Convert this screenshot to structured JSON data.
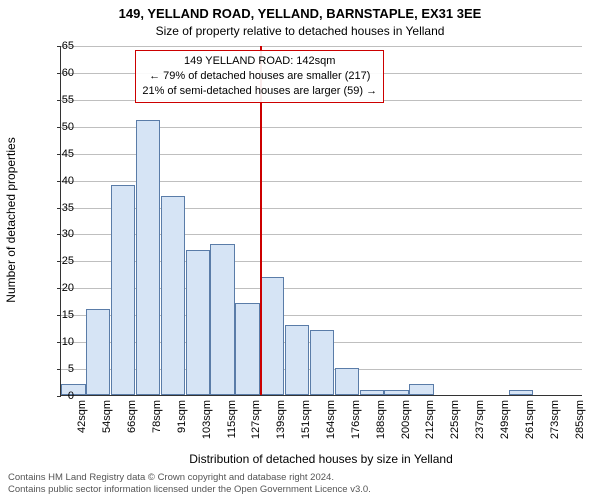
{
  "title_line1": "149, YELLAND ROAD, YELLAND, BARNSTAPLE, EX31 3EE",
  "title_line2": "Size of property relative to detached houses in Yelland",
  "y_axis_label": "Number of detached properties",
  "x_axis_label": "Distribution of detached houses by size in Yelland",
  "footer_line1": "Contains HM Land Registry data © Crown copyright and database right 2024.",
  "footer_line2": "Contains public sector information licensed under the Open Government Licence v3.0.",
  "chart": {
    "type": "histogram",
    "bar_color": "#d6e4f5",
    "bar_border_color": "#5a7ca8",
    "grid_color": "#bfbfbf",
    "axis_color": "#333333",
    "background_color": "#ffffff",
    "ylim": [
      0,
      65
    ],
    "ytick_step": 5,
    "x_labels": [
      "42sqm",
      "54sqm",
      "66sqm",
      "78sqm",
      "91sqm",
      "103sqm",
      "115sqm",
      "127sqm",
      "139sqm",
      "151sqm",
      "164sqm",
      "176sqm",
      "188sqm",
      "200sqm",
      "212sqm",
      "225sqm",
      "237sqm",
      "249sqm",
      "261sqm",
      "273sqm",
      "285sqm"
    ],
    "values": [
      2,
      16,
      39,
      51,
      37,
      27,
      28,
      17,
      22,
      13,
      12,
      5,
      1,
      1,
      2,
      0,
      0,
      0,
      1,
      0,
      0
    ],
    "callout": {
      "line_color": "#cc0000",
      "marker_bin_index": 8,
      "line1": "149 YELLAND ROAD: 142sqm",
      "line2": "← 79% of detached houses are smaller (217)",
      "line3": "21% of semi-detached houses are larger (59) →"
    }
  }
}
